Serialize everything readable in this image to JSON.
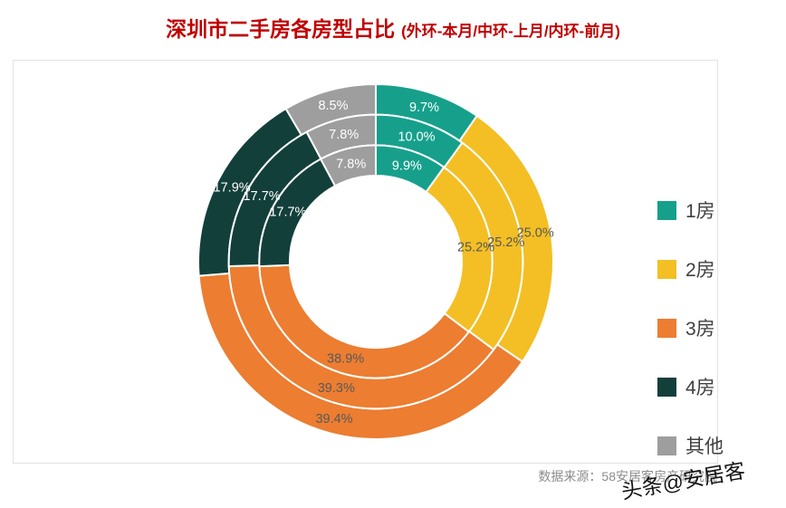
{
  "header": {
    "title": "深圳市二手房各房型占比",
    "subtitle": "(外环-本月/中环-上月/内环-前月)",
    "title_color": "#C00000"
  },
  "chart_data": {
    "type": "donut-multi-ring",
    "title": "深圳市二手房各房型占比",
    "subtitle": "(外环-本月/中环-上月/内环-前月)",
    "categories": [
      "1房",
      "2房",
      "3房",
      "4房",
      "其他"
    ],
    "colors": [
      "#16A08C",
      "#F3BF24",
      "#EC7D31",
      "#133F3B",
      "#9E9E9E"
    ],
    "label_colors": [
      "#FFFFFF",
      "#595959",
      "#595959",
      "#FFFFFF",
      "#FFFFFF"
    ],
    "rings": [
      {
        "name": "本月",
        "position": "outer",
        "values": [
          9.7,
          25.0,
          39.4,
          17.9,
          8.5
        ]
      },
      {
        "name": "上月",
        "position": "middle",
        "values": [
          10.0,
          25.2,
          39.3,
          17.7,
          7.8
        ]
      },
      {
        "name": "前月",
        "position": "inner",
        "values": [
          9.9,
          25.2,
          38.9,
          17.7,
          7.8
        ]
      }
    ],
    "label_format": "percent",
    "start_angle_deg": 0,
    "direction": "clockwise",
    "legend_position": "right"
  },
  "footer": {
    "source": "数据来源：58安居客房产研究院"
  },
  "watermark": {
    "text": "头条@安居客"
  }
}
